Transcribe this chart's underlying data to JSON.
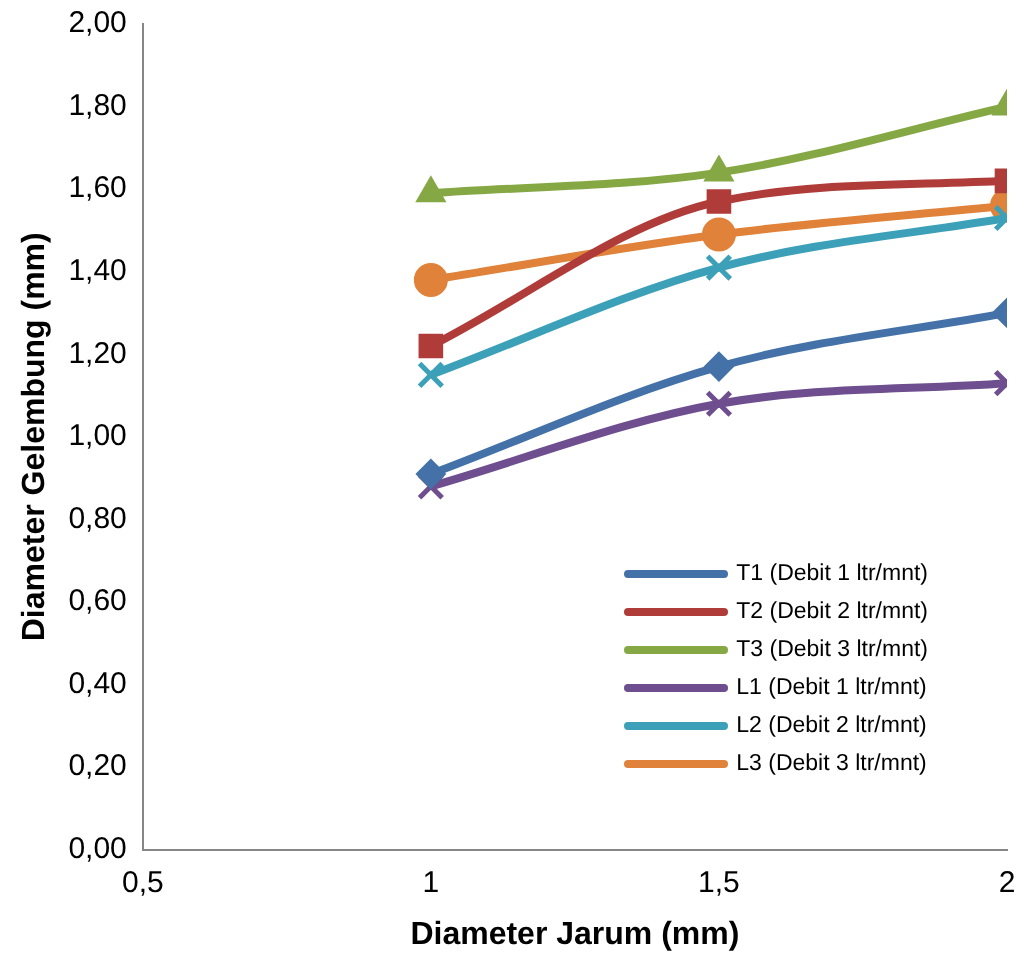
{
  "chart_data": {
    "type": "line",
    "xlabel": "Diameter Jarum (mm)",
    "ylabel": "Diameter Gelembung (mm)",
    "xlim": [
      0.5,
      2
    ],
    "xticks": [
      {
        "value": 0.5,
        "label": "0,5"
      },
      1,
      {
        "value": 1.5,
        "label": "1,5"
      },
      2
    ],
    "ylim": [
      0,
      2
    ],
    "yticks": [
      {
        "value": 0,
        "label": "0,00"
      },
      {
        "value": 0.2,
        "label": "0,20"
      },
      {
        "value": 0.4,
        "label": "0,40"
      },
      {
        "value": 0.6,
        "label": "0,60"
      },
      {
        "value": 0.8,
        "label": "0,80"
      },
      {
        "value": 1,
        "label": "1,00"
      },
      {
        "value": 1.2,
        "label": "1,20"
      },
      {
        "value": 1.4,
        "label": "1,40"
      },
      {
        "value": 1.6,
        "label": "1,60"
      },
      {
        "value": 1.8,
        "label": "1,80"
      },
      {
        "value": 2,
        "label": "2,00"
      }
    ],
    "x": [
      1,
      1.5,
      2
    ],
    "grid": false,
    "legend": "bottom right",
    "series": [
      {
        "name": "T1 (Debit 1 ltr/mnt)",
        "color": "#4472a8",
        "marker": "diamond",
        "values": [
          0.91,
          1.17,
          1.3
        ]
      },
      {
        "name": "T2 (Debit 2 ltr/mnt)",
        "color": "#b03c3a",
        "marker": "square",
        "values": [
          1.22,
          1.57,
          1.62
        ]
      },
      {
        "name": "T3 (Debit 3 ltr/mnt)",
        "color": "#86a844",
        "marker": "triangle",
        "values": [
          1.59,
          1.64,
          1.8
        ]
      },
      {
        "name": "L1 (Debit 1 ltr/mnt)",
        "color": "#6e4e8e",
        "marker": "cross",
        "values": [
          0.88,
          1.08,
          1.13
        ]
      },
      {
        "name": "L2 (Debit 2 ltr/mnt)",
        "color": "#3ba0b8",
        "marker": "cross",
        "values": [
          1.15,
          1.41,
          1.53
        ]
      },
      {
        "name": "L3 (Debit 3 ltr/mnt)",
        "color": "#e0823a",
        "marker": "circle",
        "values": [
          1.38,
          1.49,
          1.56
        ]
      }
    ]
  }
}
